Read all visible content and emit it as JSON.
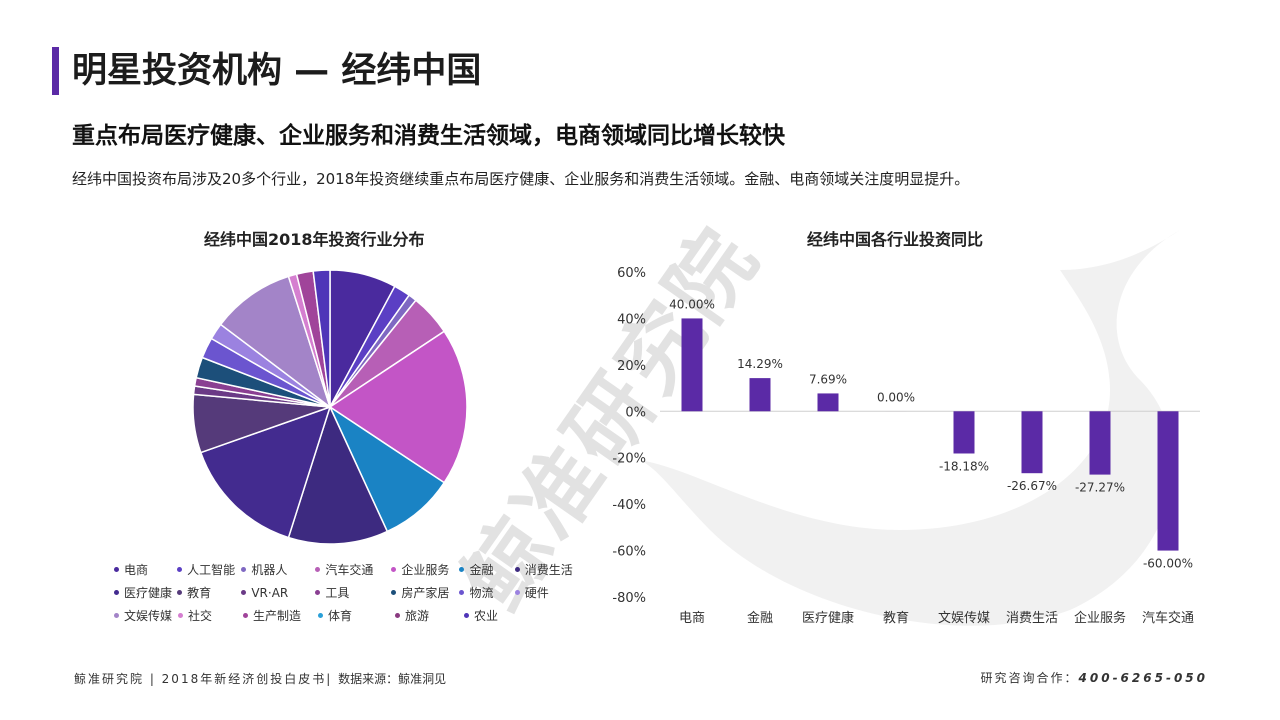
{
  "header": {
    "title": "明星投资机构 — 经纬中国",
    "subtitle": "重点布局医疗健康、企业服务和消费生活领域，电商领域同比增长较快",
    "description": "经纬中国投资布局涉及20多个行业，2018年投资继续重点布局医疗健康、企业服务和消费生活领域。金融、电商领域关注度明显提升。"
  },
  "watermark": "鲸准研究院",
  "footer": {
    "left": "鲸准研究院 | 2018年新经济创投白皮书|",
    "source": "数据来源：鲸准洞见",
    "contact_label": "研究咨询合作：",
    "contact_phone": "400-6265-050"
  },
  "colors": {
    "accent": "#5b2aa6",
    "bar": "#5b2aa6"
  },
  "chart_data": [
    {
      "type": "pie",
      "title": "经纬中国2018年投资行业分布",
      "legend_position": "bottom",
      "unit": "%",
      "slices": [
        {
          "name": "电商",
          "value": 8.0,
          "color": "#4a2a9e"
        },
        {
          "name": "人工智能",
          "value": 2.0,
          "color": "#5b3fc4"
        },
        {
          "name": "机器人",
          "value": 1.0,
          "color": "#7f68c2"
        },
        {
          "name": "汽车交通",
          "value": 5.0,
          "color": "#b75fb6"
        },
        {
          "name": "企业服务",
          "value": 19.0,
          "color": "#c355c6"
        },
        {
          "name": "金融",
          "value": 9.0,
          "color": "#1a83c4"
        },
        {
          "name": "消费生活",
          "value": 12.0,
          "color": "#3d2a80"
        },
        {
          "name": "医疗健康",
          "value": 15.0,
          "color": "#432b8f"
        },
        {
          "name": "教育",
          "value": 7.0,
          "color": "#553a7a"
        },
        {
          "name": "VR·AR",
          "value": 1.0,
          "color": "#6a3a86"
        },
        {
          "name": "工具",
          "value": 1.0,
          "color": "#8a3f92"
        },
        {
          "name": "房产家居",
          "value": 2.5,
          "color": "#1c4f7a"
        },
        {
          "name": "物流",
          "value": 2.5,
          "color": "#6b55cf"
        },
        {
          "name": "硬件",
          "value": 2.0,
          "color": "#9b82e0"
        },
        {
          "name": "文娱传媒",
          "value": 10.0,
          "color": "#a384c8"
        },
        {
          "name": "社交",
          "value": 1.0,
          "color": "#d57fd0"
        },
        {
          "name": "生产制造",
          "value": 2.0,
          "color": "#a0449a"
        },
        {
          "name": "体育",
          "value": 0.0,
          "color": "#2aa0d8"
        },
        {
          "name": "旅游",
          "value": 0.0,
          "color": "#8a3a80"
        },
        {
          "name": "农业",
          "value": 2.0,
          "color": "#4f35b8"
        }
      ]
    },
    {
      "type": "bar",
      "title": "经纬中国各行业投资同比",
      "categories": [
        "电商",
        "金融",
        "医疗健康",
        "教育",
        "文娱传媒",
        "消费生活",
        "企业服务",
        "汽车交通"
      ],
      "values": [
        40.0,
        14.29,
        7.69,
        0.0,
        -18.18,
        -26.67,
        -27.27,
        -60.0
      ],
      "labels": [
        "40.00%",
        "14.29%",
        "7.69%",
        "0.00%",
        "-18.18%",
        "-26.67%",
        "-27.27%",
        "-60.00%"
      ],
      "ylim": [
        -80,
        60
      ],
      "yticks": [
        60,
        40,
        20,
        0,
        -20,
        -40,
        -60,
        -80
      ],
      "ytick_labels": [
        "60%",
        "40%",
        "20%",
        "0%",
        "-20%",
        "-40%",
        "-60%",
        "-80%"
      ],
      "grid": false
    }
  ]
}
